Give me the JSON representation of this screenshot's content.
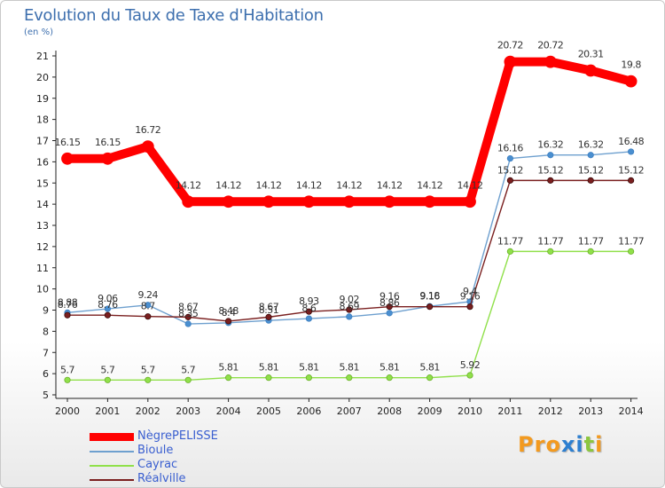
{
  "chart_data": {
    "type": "line",
    "title": "Evolution du Taux de Taxe d'Habitation",
    "subtitle": "(en %)",
    "x": [
      "2000",
      "2001",
      "2002",
      "2003",
      "2004",
      "2005",
      "2006",
      "2007",
      "2008",
      "2009",
      "2010",
      "2011",
      "2012",
      "2013",
      "2014"
    ],
    "ylim": [
      5,
      21
    ],
    "yticks": [
      5,
      6,
      7,
      8,
      9,
      10,
      11,
      12,
      13,
      14,
      15,
      16,
      17,
      18,
      19,
      20,
      21
    ],
    "grid": false,
    "legend_position": "bottom-left",
    "series": [
      {
        "name": "NègrePELISSE",
        "color": "#ff0000",
        "values": [
          16.15,
          16.15,
          16.72,
          14.12,
          14.12,
          14.12,
          14.12,
          14.12,
          14.12,
          14.12,
          14.12,
          20.72,
          20.72,
          20.31,
          19.8
        ],
        "labels": [
          "16.15",
          "16.15",
          "16.72",
          "14.12",
          "14.12",
          "14.12",
          "14.12",
          "14.12",
          "14.12",
          "14.12",
          "14.12",
          "20.72",
          "20.72",
          "20.31",
          "19.8"
        ]
      },
      {
        "name": "Bioule",
        "color": "#6ea0cf",
        "values": [
          8.88,
          9.06,
          9.24,
          8.35,
          8.4,
          8.51,
          8.6,
          8.69,
          8.86,
          9.18,
          9.4,
          16.16,
          16.32,
          16.32,
          16.48
        ],
        "labels": [
          "8.88",
          "9.06",
          "9.24",
          "8.35",
          "8.4",
          "8.51",
          "8.6",
          "8.69",
          "8.86",
          "9.18",
          "9.4",
          "16.16",
          "16.32",
          "16.32",
          "16.48"
        ]
      },
      {
        "name": "Cayrac",
        "color": "#90e04a",
        "values": [
          5.7,
          5.7,
          5.7,
          5.7,
          5.81,
          5.81,
          5.81,
          5.81,
          5.81,
          5.81,
          5.92,
          11.77,
          11.77,
          11.77,
          11.77
        ],
        "labels": [
          "5.7",
          "5.7",
          "5.7",
          "5.7",
          "5.81",
          "5.81",
          "5.81",
          "5.81",
          "5.81",
          "5.81",
          "5.92",
          "11.77",
          "11.77",
          "11.77",
          "11.77"
        ]
      },
      {
        "name": "Réalville",
        "color": "#7a1f1f",
        "values": [
          8.76,
          8.76,
          8.7,
          8.67,
          8.48,
          8.67,
          8.93,
          9.02,
          9.16,
          9.16,
          9.16,
          15.12,
          15.12,
          15.12,
          15.12
        ],
        "labels": [
          "8.76",
          "8.76",
          "8.7",
          "8.67",
          "8.48",
          "8.67",
          "8.93",
          "9.02",
          "9.16",
          "9.16",
          "9.16",
          "15.12",
          "15.12",
          "15.12",
          "15.12"
        ]
      }
    ]
  },
  "legend": [
    {
      "label": "NègrePELISSE",
      "color": "#ff0000"
    },
    {
      "label": "Bioule",
      "color": "#6ea0cf"
    },
    {
      "label": "Cayrac",
      "color": "#90e04a"
    },
    {
      "label": "Réalville",
      "color": "#7a1f1f"
    }
  ],
  "logo": {
    "letters": [
      "P",
      "r",
      "o",
      "x",
      "i",
      "t",
      "i"
    ],
    "colors": [
      "#f39a1f",
      "#f39a1f",
      "#f39a1f",
      "#2d7fd0",
      "#2d7fd0",
      "#8cc63f",
      "#f39a1f"
    ]
  }
}
